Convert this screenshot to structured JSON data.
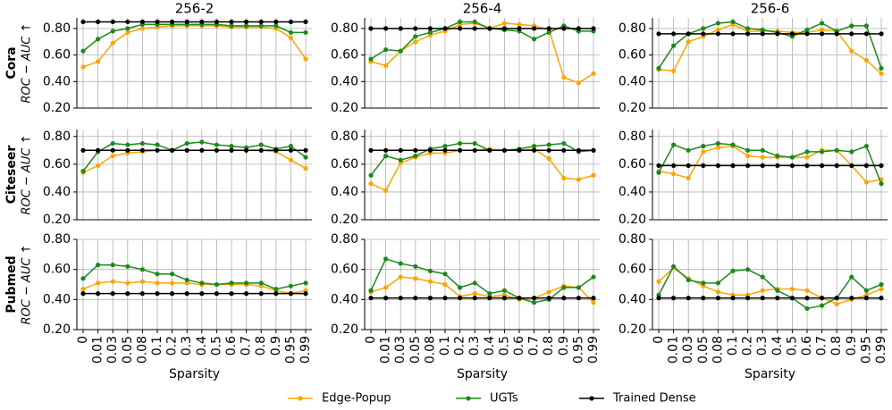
{
  "legend": [
    {
      "name": "Edge-Popup",
      "color": "#ffa500"
    },
    {
      "name": "UGTs",
      "color": "#1a8a1a"
    },
    {
      "name": "Trained Dense",
      "color": "#000000"
    }
  ],
  "chart_data": [
    {
      "type": "line",
      "title": "256-2",
      "row_label": "Cora",
      "y_label": "ROC − AUC ↑",
      "ylim": [
        0.2,
        0.88
      ],
      "yticks": [
        {
          "value": 0.2,
          "label": "0.20"
        },
        {
          "value": 0.4,
          "label": "0.40"
        },
        {
          "value": 0.6,
          "label": "0.60"
        },
        {
          "value": 0.8,
          "label": "0.80"
        }
      ],
      "grid": true,
      "series": [
        {
          "values": [
            0.51,
            0.55,
            0.69,
            0.77,
            0.8,
            0.81,
            0.82,
            0.82,
            0.82,
            0.82,
            0.81,
            0.81,
            0.81,
            0.8,
            0.73,
            0.57
          ]
        },
        {
          "values": [
            0.63,
            0.72,
            0.78,
            0.8,
            0.83,
            0.83,
            0.83,
            0.83,
            0.83,
            0.83,
            0.82,
            0.82,
            0.82,
            0.82,
            0.77,
            0.77
          ]
        },
        {
          "values": [
            0.85,
            0.85,
            0.85,
            0.85,
            0.85,
            0.85,
            0.85,
            0.85,
            0.85,
            0.85,
            0.85,
            0.85,
            0.85,
            0.85,
            0.85,
            0.85
          ]
        }
      ]
    },
    {
      "type": "line",
      "title": "256-4",
      "ylim": [
        0.2,
        0.88
      ],
      "yticks": [
        {
          "value": 0.2,
          "label": "0.20"
        },
        {
          "value": 0.4,
          "label": "0.40"
        },
        {
          "value": 0.6,
          "label": "0.60"
        },
        {
          "value": 0.8,
          "label": "0.80"
        }
      ],
      "grid": true,
      "series": [
        {
          "values": [
            0.55,
            0.52,
            0.63,
            0.7,
            0.75,
            0.78,
            0.83,
            0.84,
            0.8,
            0.84,
            0.83,
            0.82,
            0.79,
            0.43,
            0.39,
            0.46
          ]
        },
        {
          "values": [
            0.57,
            0.64,
            0.63,
            0.74,
            0.77,
            0.8,
            0.85,
            0.85,
            0.8,
            0.79,
            0.78,
            0.72,
            0.77,
            0.82,
            0.78,
            0.78
          ]
        },
        {
          "values": [
            0.8,
            0.8,
            0.8,
            0.8,
            0.8,
            0.8,
            0.8,
            0.8,
            0.8,
            0.8,
            0.8,
            0.8,
            0.8,
            0.8,
            0.8,
            0.8
          ]
        }
      ]
    },
    {
      "type": "line",
      "title": "256-6",
      "ylim": [
        0.2,
        0.88
      ],
      "yticks": [
        {
          "value": 0.2,
          "label": "0.20"
        },
        {
          "value": 0.4,
          "label": "0.40"
        },
        {
          "value": 0.6,
          "label": "0.60"
        },
        {
          "value": 0.8,
          "label": "0.80"
        }
      ],
      "grid": true,
      "series": [
        {
          "values": [
            0.49,
            0.48,
            0.7,
            0.74,
            0.79,
            0.83,
            0.78,
            0.78,
            0.78,
            0.77,
            0.77,
            0.79,
            0.78,
            0.63,
            0.56,
            0.46
          ]
        },
        {
          "values": [
            0.5,
            0.67,
            0.76,
            0.8,
            0.84,
            0.85,
            0.8,
            0.79,
            0.77,
            0.74,
            0.79,
            0.84,
            0.78,
            0.82,
            0.82,
            0.5
          ]
        },
        {
          "values": [
            0.76,
            0.76,
            0.76,
            0.76,
            0.76,
            0.76,
            0.76,
            0.76,
            0.76,
            0.76,
            0.76,
            0.76,
            0.76,
            0.76,
            0.76,
            0.76
          ]
        }
      ]
    },
    {
      "type": "line",
      "row_label": "Citeseer",
      "y_label": "ROC − AUC ↑",
      "ylim": [
        0.2,
        0.85
      ],
      "yticks": [
        {
          "value": 0.2,
          "label": "0.20"
        },
        {
          "value": 0.4,
          "label": "0.40"
        },
        {
          "value": 0.6,
          "label": "0.60"
        },
        {
          "value": 0.8,
          "label": "0.80"
        }
      ],
      "grid": true,
      "series": [
        {
          "values": [
            0.54,
            0.59,
            0.66,
            0.68,
            0.69,
            0.7,
            0.7,
            0.7,
            0.7,
            0.7,
            0.7,
            0.7,
            0.7,
            0.69,
            0.63,
            0.57
          ]
        },
        {
          "values": [
            0.55,
            0.69,
            0.75,
            0.74,
            0.75,
            0.74,
            0.7,
            0.75,
            0.76,
            0.74,
            0.73,
            0.72,
            0.74,
            0.71,
            0.73,
            0.65
          ]
        },
        {
          "values": [
            0.7,
            0.7,
            0.7,
            0.7,
            0.7,
            0.7,
            0.7,
            0.7,
            0.7,
            0.7,
            0.7,
            0.7,
            0.7,
            0.7,
            0.7,
            0.7
          ]
        }
      ]
    },
    {
      "type": "line",
      "ylim": [
        0.2,
        0.85
      ],
      "yticks": [
        {
          "value": 0.2,
          "label": "0.20"
        },
        {
          "value": 0.4,
          "label": "0.40"
        },
        {
          "value": 0.6,
          "label": "0.60"
        },
        {
          "value": 0.8,
          "label": "0.80"
        }
      ],
      "grid": true,
      "series": [
        {
          "values": [
            0.46,
            0.41,
            0.61,
            0.65,
            0.68,
            0.68,
            0.7,
            0.7,
            0.71,
            0.7,
            0.7,
            0.71,
            0.64,
            0.5,
            0.49,
            0.52
          ]
        },
        {
          "values": [
            0.52,
            0.66,
            0.63,
            0.66,
            0.71,
            0.73,
            0.75,
            0.75,
            0.7,
            0.7,
            0.71,
            0.73,
            0.74,
            0.75,
            0.69,
            0.7
          ]
        },
        {
          "values": [
            0.7,
            0.7,
            0.7,
            0.7,
            0.7,
            0.7,
            0.7,
            0.7,
            0.7,
            0.7,
            0.7,
            0.7,
            0.7,
            0.7,
            0.7,
            0.7
          ]
        }
      ]
    },
    {
      "type": "line",
      "ylim": [
        0.2,
        0.85
      ],
      "yticks": [
        {
          "value": 0.2,
          "label": "0.20"
        },
        {
          "value": 0.4,
          "label": "0.40"
        },
        {
          "value": 0.6,
          "label": "0.60"
        },
        {
          "value": 0.8,
          "label": "0.80"
        }
      ],
      "grid": true,
      "series": [
        {
          "values": [
            0.55,
            0.53,
            0.5,
            0.69,
            0.72,
            0.73,
            0.66,
            0.65,
            0.65,
            0.65,
            0.65,
            0.7,
            0.7,
            0.59,
            0.47,
            0.49
          ]
        },
        {
          "values": [
            0.54,
            0.74,
            0.7,
            0.73,
            0.75,
            0.74,
            0.7,
            0.7,
            0.66,
            0.65,
            0.69,
            0.69,
            0.7,
            0.69,
            0.73,
            0.46
          ]
        },
        {
          "values": [
            0.59,
            0.59,
            0.59,
            0.59,
            0.59,
            0.59,
            0.59,
            0.59,
            0.59,
            0.59,
            0.59,
            0.59,
            0.59,
            0.59,
            0.59,
            0.59
          ]
        }
      ]
    },
    {
      "type": "line",
      "row_label": "Pubmed",
      "y_label": "ROC − AUC ↑",
      "x_label": "Sparsity",
      "categories": [
        "0",
        "0.01",
        "0.03",
        "0.05",
        "0.08",
        "0.1",
        "0.2",
        "0.3",
        "0.4",
        "0.5",
        "0.6",
        "0.7",
        "0.8",
        "0.9",
        "0.95",
        "0.99"
      ],
      "ylim": [
        0.2,
        0.8
      ],
      "yticks": [
        {
          "value": 0.2,
          "label": "0.20"
        },
        {
          "value": 0.4,
          "label": "0.40"
        },
        {
          "value": 0.6,
          "label": "0.60"
        },
        {
          "value": 0.8,
          "label": "0.80"
        }
      ],
      "grid": true,
      "series": [
        {
          "values": [
            0.47,
            0.51,
            0.52,
            0.51,
            0.52,
            0.51,
            0.51,
            0.51,
            0.5,
            0.5,
            0.5,
            0.5,
            0.49,
            0.46,
            0.44,
            0.46
          ]
        },
        {
          "values": [
            0.54,
            0.63,
            0.63,
            0.62,
            0.6,
            0.57,
            0.57,
            0.53,
            0.51,
            0.5,
            0.51,
            0.51,
            0.51,
            0.47,
            0.49,
            0.51
          ]
        },
        {
          "values": [
            0.44,
            0.44,
            0.44,
            0.44,
            0.44,
            0.44,
            0.44,
            0.44,
            0.44,
            0.44,
            0.44,
            0.44,
            0.44,
            0.44,
            0.44,
            0.44
          ]
        }
      ]
    },
    {
      "type": "line",
      "x_label": "Sparsity",
      "categories": [
        "0",
        "0.01",
        "0.03",
        "0.05",
        "0.08",
        "0.1",
        "0.2",
        "0.3",
        "0.4",
        "0.5",
        "0.6",
        "0.7",
        "0.8",
        "0.9",
        "0.95",
        "0.99"
      ],
      "ylim": [
        0.2,
        0.8
      ],
      "yticks": [
        {
          "value": 0.2,
          "label": "0.20"
        },
        {
          "value": 0.4,
          "label": "0.40"
        },
        {
          "value": 0.6,
          "label": "0.60"
        },
        {
          "value": 0.8,
          "label": "0.80"
        }
      ],
      "grid": true,
      "series": [
        {
          "values": [
            0.45,
            0.48,
            0.55,
            0.54,
            0.52,
            0.5,
            0.42,
            0.44,
            0.42,
            0.43,
            0.4,
            0.41,
            0.45,
            0.49,
            0.48,
            0.38
          ]
        },
        {
          "values": [
            0.46,
            0.67,
            0.64,
            0.62,
            0.59,
            0.57,
            0.48,
            0.51,
            0.44,
            0.46,
            0.41,
            0.38,
            0.4,
            0.48,
            0.48,
            0.55
          ]
        },
        {
          "values": [
            0.41,
            0.41,
            0.41,
            0.41,
            0.41,
            0.41,
            0.41,
            0.41,
            0.41,
            0.41,
            0.41,
            0.41,
            0.41,
            0.41,
            0.41,
            0.41
          ]
        }
      ]
    },
    {
      "type": "line",
      "x_label": "Sparsity",
      "categories": [
        "0",
        "0.01",
        "0.03",
        "0.05",
        "0.08",
        "0.1",
        "0.2",
        "0.3",
        "0.4",
        "0.5",
        "0.6",
        "0.7",
        "0.8",
        "0.9",
        "0.95",
        "0.99"
      ],
      "ylim": [
        0.2,
        0.8
      ],
      "yticks": [
        {
          "value": 0.2,
          "label": "0.20"
        },
        {
          "value": 0.4,
          "label": "0.40"
        },
        {
          "value": 0.6,
          "label": "0.60"
        },
        {
          "value": 0.8,
          "label": "0.80"
        }
      ],
      "grid": true,
      "series": [
        {
          "values": [
            0.52,
            0.61,
            0.54,
            0.49,
            0.45,
            0.43,
            0.43,
            0.46,
            0.47,
            0.47,
            0.46,
            0.41,
            0.37,
            0.4,
            0.43,
            0.47
          ]
        },
        {
          "values": [
            0.43,
            0.62,
            0.53,
            0.51,
            0.51,
            0.59,
            0.6,
            0.55,
            0.46,
            0.41,
            0.34,
            0.36,
            0.41,
            0.55,
            0.46,
            0.5
          ]
        },
        {
          "values": [
            0.41,
            0.41,
            0.41,
            0.41,
            0.41,
            0.41,
            0.41,
            0.41,
            0.41,
            0.41,
            0.41,
            0.41,
            0.41,
            0.41,
            0.41,
            0.41
          ]
        }
      ]
    }
  ]
}
